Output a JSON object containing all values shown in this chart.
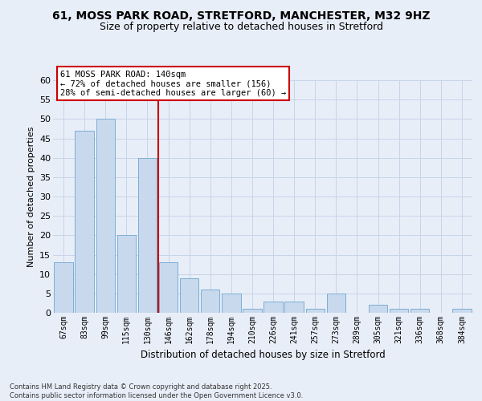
{
  "title1": "61, MOSS PARK ROAD, STRETFORD, MANCHESTER, M32 9HZ",
  "title2": "Size of property relative to detached houses in Stretford",
  "xlabel": "Distribution of detached houses by size in Stretford",
  "ylabel": "Number of detached properties",
  "categories": [
    "67sqm",
    "83sqm",
    "99sqm",
    "115sqm",
    "130sqm",
    "146sqm",
    "162sqm",
    "178sqm",
    "194sqm",
    "210sqm",
    "226sqm",
    "241sqm",
    "257sqm",
    "273sqm",
    "289sqm",
    "305sqm",
    "321sqm",
    "336sqm",
    "368sqm",
    "384sqm"
  ],
  "values": [
    13,
    47,
    50,
    20,
    40,
    13,
    9,
    6,
    5,
    1,
    3,
    3,
    1,
    5,
    0,
    2,
    1,
    1,
    0,
    1
  ],
  "bar_color": "#c9d9ed",
  "bar_edge_color": "#7baed4",
  "grid_color": "#c8d4e8",
  "background_color": "#e8eef8",
  "red_line_x": 4.5,
  "annotation_text": "61 MOSS PARK ROAD: 140sqm\n← 72% of detached houses are smaller (156)\n28% of semi-detached houses are larger (60) →",
  "annotation_box_color": "#ffffff",
  "annotation_box_edge": "#cc0000",
  "red_line_color": "#cc0000",
  "ylim": [
    0,
    60
  ],
  "yticks": [
    0,
    5,
    10,
    15,
    20,
    25,
    30,
    35,
    40,
    45,
    50,
    55,
    60
  ],
  "footer": "Contains HM Land Registry data © Crown copyright and database right 2025.\nContains public sector information licensed under the Open Government Licence v3.0.",
  "title_fontsize": 10,
  "subtitle_fontsize": 9,
  "footer_fontsize": 6
}
